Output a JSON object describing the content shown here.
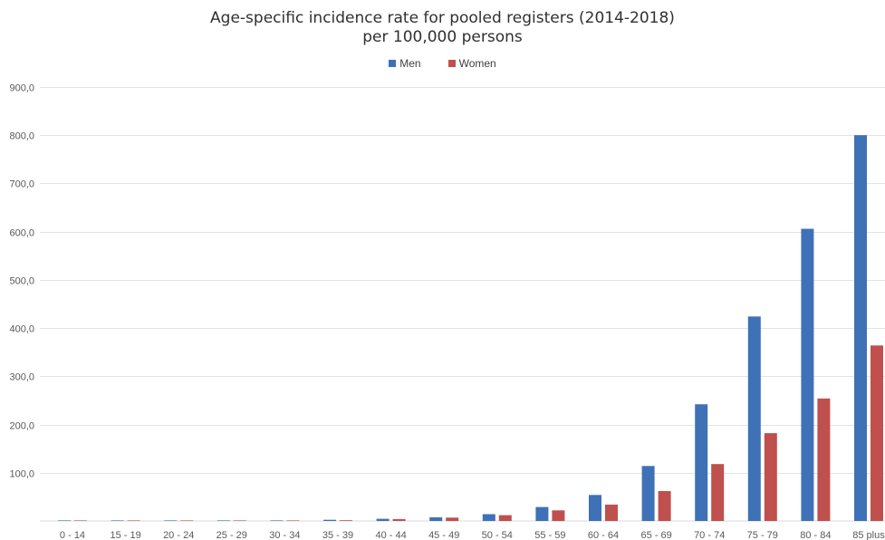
{
  "chart_data": {
    "type": "bar",
    "title": "Age-specific incidence rate for pooled registers (2014-2018)",
    "subtitle": "per 100,000 persons",
    "xlabel": "",
    "ylabel": "",
    "ylim": [
      0,
      900
    ],
    "yticks": [
      100,
      200,
      300,
      400,
      500,
      600,
      700,
      800,
      900
    ],
    "ytick_labels": [
      "100,0",
      "200,0",
      "300,0",
      "400,0",
      "500,0",
      "600,0",
      "700,0",
      "800,0",
      "900,0"
    ],
    "grid": true,
    "legend_position": "top-center",
    "categories": [
      "0 - 14",
      "15 - 19",
      "20 - 24",
      "25 - 29",
      "30 - 34",
      "35 - 39",
      "40 - 44",
      "45 - 49",
      "50 - 54",
      "55 - 59",
      "60 - 64",
      "65 - 69",
      "70 - 74",
      "75 - 79",
      "80 - 84",
      "85 plus"
    ],
    "series": [
      {
        "name": "Men",
        "color": "#3f71b6",
        "values": [
          0.3,
          0.4,
          0.6,
          0.8,
          1.0,
          2.5,
          4.5,
          7.5,
          14.0,
          29.0,
          54.0,
          114.0,
          242.0,
          424.0,
          606.0,
          800.0
        ]
      },
      {
        "name": "Women",
        "color": "#c0504d",
        "values": [
          0.2,
          0.3,
          0.4,
          0.5,
          0.8,
          1.5,
          4.0,
          7.0,
          12.0,
          22.0,
          34.0,
          62.0,
          118.0,
          182.0,
          254.0,
          364.0
        ]
      }
    ]
  }
}
